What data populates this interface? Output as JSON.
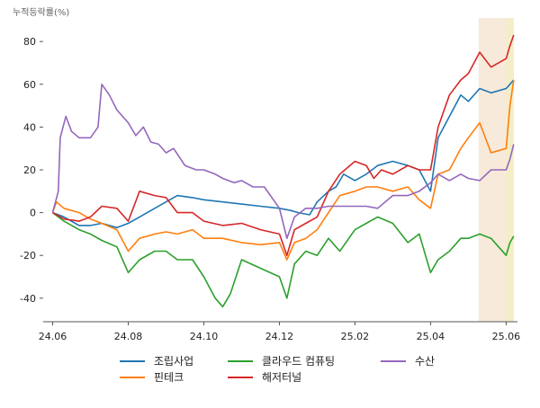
{
  "chart_data": {
    "type": "line",
    "ylabel": "누적등락률(%)",
    "ylim": [
      -51,
      91
    ],
    "xlim": [
      -0.25,
      12.3
    ],
    "xticks": [
      {
        "v": 0,
        "label": "24.06"
      },
      {
        "v": 2,
        "label": "24.08"
      },
      {
        "v": 4,
        "label": "24.10"
      },
      {
        "v": 6,
        "label": "24.12"
      },
      {
        "v": 8,
        "label": "25.02"
      },
      {
        "v": 10,
        "label": "25.04"
      },
      {
        "v": 12,
        "label": "25.06"
      }
    ],
    "yticks": [
      {
        "v": -40,
        "label": "-40"
      },
      {
        "v": -20,
        "label": "-20"
      },
      {
        "v": 0,
        "label": "0"
      },
      {
        "v": 20,
        "label": "20"
      },
      {
        "v": 40,
        "label": "40"
      },
      {
        "v": 60,
        "label": "60"
      },
      {
        "v": 80,
        "label": "80"
      }
    ],
    "highlights": [
      {
        "x0": 11.27,
        "x1": 12.2,
        "color": "#f6e6d4"
      },
      {
        "x0": 12.0,
        "x1": 12.2,
        "color": "#f2efc4"
      }
    ],
    "series": [
      {
        "name": "조립사업",
        "color": "#1f77b4",
        "points": [
          [
            0,
            0
          ],
          [
            0.3,
            -2
          ],
          [
            0.7,
            -6
          ],
          [
            1,
            -6
          ],
          [
            1.3,
            -5
          ],
          [
            1.7,
            -7
          ],
          [
            2,
            -5
          ],
          [
            2.3,
            -2
          ],
          [
            2.7,
            2
          ],
          [
            3,
            5
          ],
          [
            3.3,
            8
          ],
          [
            3.7,
            7
          ],
          [
            4,
            6
          ],
          [
            4.5,
            5
          ],
          [
            5,
            4
          ],
          [
            5.5,
            3
          ],
          [
            6,
            2
          ],
          [
            6.3,
            1
          ],
          [
            6.5,
            0
          ],
          [
            6.8,
            -1
          ],
          [
            7,
            5
          ],
          [
            7.3,
            10
          ],
          [
            7.5,
            12
          ],
          [
            7.7,
            18
          ],
          [
            8,
            15
          ],
          [
            8.3,
            18
          ],
          [
            8.6,
            22
          ],
          [
            9,
            24
          ],
          [
            9.4,
            22
          ],
          [
            9.7,
            20
          ],
          [
            10,
            10
          ],
          [
            10.2,
            35
          ],
          [
            10.5,
            45
          ],
          [
            10.8,
            55
          ],
          [
            11,
            52
          ],
          [
            11.3,
            58
          ],
          [
            11.6,
            56
          ],
          [
            12,
            58
          ],
          [
            12.1,
            60
          ],
          [
            12.2,
            62
          ]
        ]
      },
      {
        "name": "핀테크",
        "color": "#ff7f0e",
        "points": [
          [
            0,
            0
          ],
          [
            0.1,
            5
          ],
          [
            0.3,
            2
          ],
          [
            0.7,
            0
          ],
          [
            1,
            -3
          ],
          [
            1.3,
            -5
          ],
          [
            1.7,
            -8
          ],
          [
            2,
            -18
          ],
          [
            2.3,
            -12
          ],
          [
            2.7,
            -10
          ],
          [
            3,
            -9
          ],
          [
            3.3,
            -10
          ],
          [
            3.7,
            -8
          ],
          [
            4,
            -12
          ],
          [
            4.5,
            -12
          ],
          [
            5,
            -14
          ],
          [
            5.5,
            -15
          ],
          [
            6,
            -14
          ],
          [
            6.2,
            -22
          ],
          [
            6.4,
            -14
          ],
          [
            6.7,
            -12
          ],
          [
            7,
            -8
          ],
          [
            7.3,
            0
          ],
          [
            7.6,
            8
          ],
          [
            8,
            10
          ],
          [
            8.3,
            12
          ],
          [
            8.6,
            12
          ],
          [
            9,
            10
          ],
          [
            9.4,
            12
          ],
          [
            9.7,
            6
          ],
          [
            10,
            2
          ],
          [
            10.2,
            18
          ],
          [
            10.5,
            20
          ],
          [
            10.8,
            30
          ],
          [
            11,
            35
          ],
          [
            11.3,
            42
          ],
          [
            11.6,
            28
          ],
          [
            12,
            30
          ],
          [
            12.1,
            50
          ],
          [
            12.2,
            62
          ]
        ]
      },
      {
        "name": "클라우드 컴퓨팅",
        "color": "#2ca02c",
        "points": [
          [
            0,
            0
          ],
          [
            0.3,
            -4
          ],
          [
            0.7,
            -8
          ],
          [
            1,
            -10
          ],
          [
            1.3,
            -13
          ],
          [
            1.7,
            -16
          ],
          [
            2,
            -28
          ],
          [
            2.3,
            -22
          ],
          [
            2.7,
            -18
          ],
          [
            3,
            -18
          ],
          [
            3.3,
            -22
          ],
          [
            3.7,
            -22
          ],
          [
            4,
            -30
          ],
          [
            4.3,
            -40
          ],
          [
            4.5,
            -44
          ],
          [
            4.7,
            -38
          ],
          [
            5,
            -22
          ],
          [
            5.5,
            -26
          ],
          [
            6,
            -30
          ],
          [
            6.2,
            -40
          ],
          [
            6.4,
            -24
          ],
          [
            6.7,
            -18
          ],
          [
            7,
            -20
          ],
          [
            7.3,
            -12
          ],
          [
            7.6,
            -18
          ],
          [
            8,
            -8
          ],
          [
            8.3,
            -5
          ],
          [
            8.6,
            -2
          ],
          [
            9,
            -5
          ],
          [
            9.4,
            -14
          ],
          [
            9.7,
            -10
          ],
          [
            10,
            -28
          ],
          [
            10.2,
            -22
          ],
          [
            10.5,
            -18
          ],
          [
            10.8,
            -12
          ],
          [
            11,
            -12
          ],
          [
            11.3,
            -10
          ],
          [
            11.6,
            -12
          ],
          [
            12,
            -20
          ],
          [
            12.1,
            -14
          ],
          [
            12.2,
            -11
          ]
        ]
      },
      {
        "name": "해저터널",
        "color": "#d62728",
        "points": [
          [
            0,
            0
          ],
          [
            0.3,
            -3
          ],
          [
            0.7,
            -4
          ],
          [
            1,
            -2
          ],
          [
            1.3,
            3
          ],
          [
            1.7,
            2
          ],
          [
            2,
            -4
          ],
          [
            2.3,
            10
          ],
          [
            2.7,
            8
          ],
          [
            3,
            7
          ],
          [
            3.3,
            0
          ],
          [
            3.7,
            0
          ],
          [
            4,
            -4
          ],
          [
            4.5,
            -6
          ],
          [
            5,
            -5
          ],
          [
            5.5,
            -8
          ],
          [
            6,
            -10
          ],
          [
            6.2,
            -20
          ],
          [
            6.4,
            -8
          ],
          [
            6.7,
            -5
          ],
          [
            7,
            -2
          ],
          [
            7.3,
            10
          ],
          [
            7.6,
            18
          ],
          [
            8,
            24
          ],
          [
            8.3,
            22
          ],
          [
            8.5,
            16
          ],
          [
            8.7,
            20
          ],
          [
            9,
            18
          ],
          [
            9.4,
            22
          ],
          [
            9.7,
            20
          ],
          [
            10,
            20
          ],
          [
            10.2,
            40
          ],
          [
            10.5,
            55
          ],
          [
            10.8,
            62
          ],
          [
            11,
            65
          ],
          [
            11.3,
            75
          ],
          [
            11.6,
            68
          ],
          [
            12,
            72
          ],
          [
            12.1,
            78
          ],
          [
            12.2,
            83
          ]
        ]
      },
      {
        "name": "수산",
        "color": "#9467bd",
        "points": [
          [
            0,
            0
          ],
          [
            0.15,
            10
          ],
          [
            0.2,
            35
          ],
          [
            0.35,
            45
          ],
          [
            0.5,
            38
          ],
          [
            0.7,
            35
          ],
          [
            1,
            35
          ],
          [
            1.2,
            40
          ],
          [
            1.3,
            60
          ],
          [
            1.5,
            55
          ],
          [
            1.7,
            48
          ],
          [
            2,
            42
          ],
          [
            2.2,
            36
          ],
          [
            2.4,
            40
          ],
          [
            2.6,
            33
          ],
          [
            2.8,
            32
          ],
          [
            3,
            28
          ],
          [
            3.2,
            30
          ],
          [
            3.5,
            22
          ],
          [
            3.8,
            20
          ],
          [
            4,
            20
          ],
          [
            4.3,
            18
          ],
          [
            4.5,
            16
          ],
          [
            4.8,
            14
          ],
          [
            5,
            15
          ],
          [
            5.3,
            12
          ],
          [
            5.6,
            12
          ],
          [
            6,
            2
          ],
          [
            6.2,
            -12
          ],
          [
            6.4,
            -2
          ],
          [
            6.7,
            2
          ],
          [
            7,
            2
          ],
          [
            7.3,
            3
          ],
          [
            7.6,
            3
          ],
          [
            8,
            3
          ],
          [
            8.3,
            3
          ],
          [
            8.6,
            2
          ],
          [
            9,
            8
          ],
          [
            9.4,
            8
          ],
          [
            9.7,
            10
          ],
          [
            10,
            14
          ],
          [
            10.2,
            18
          ],
          [
            10.5,
            15
          ],
          [
            10.8,
            18
          ],
          [
            11,
            16
          ],
          [
            11.3,
            15
          ],
          [
            11.6,
            20
          ],
          [
            12,
            20
          ],
          [
            12.1,
            25
          ],
          [
            12.2,
            32
          ]
        ]
      }
    ]
  }
}
